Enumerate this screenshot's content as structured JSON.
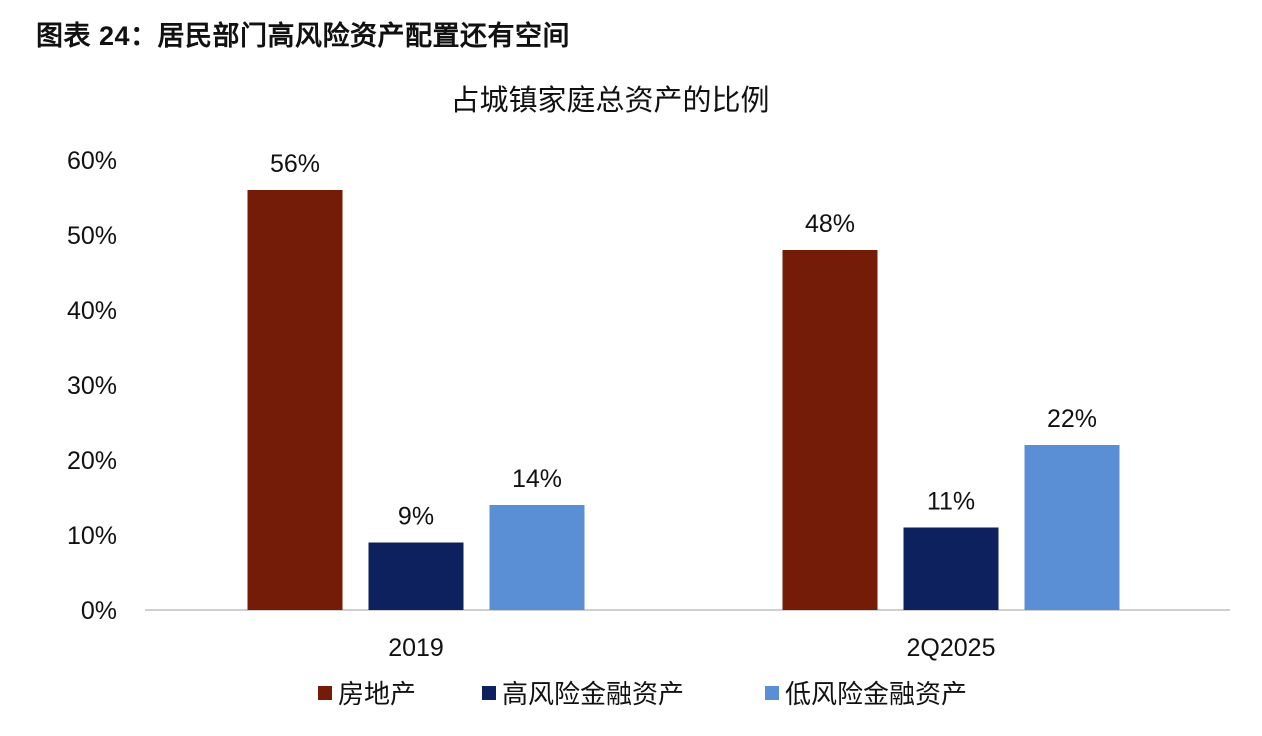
{
  "figure_title": "图表 24：居民部门高风险资产配置还有空间",
  "chart_data": {
    "type": "bar",
    "title": "占城镇家庭总资产的比例",
    "xlabel": "",
    "ylabel": "",
    "categories": [
      "2019",
      "2Q2025"
    ],
    "series": [
      {
        "name": "房地产",
        "values": [
          56,
          48
        ],
        "labels": [
          "56%",
          "48%"
        ],
        "color": "#741C07"
      },
      {
        "name": "高风险金融资产",
        "values": [
          9,
          11
        ],
        "labels": [
          "9%",
          "11%"
        ],
        "color": "#0C215E"
      },
      {
        "name": "低风险金融资产",
        "values": [
          14,
          22
        ],
        "labels": [
          "14%",
          "22%"
        ],
        "color": "#5A8FD5"
      }
    ],
    "ylim": [
      0,
      60
    ],
    "yticks": [
      "0%",
      "10%",
      "20%",
      "30%",
      "40%",
      "50%",
      "60%"
    ],
    "grid": false,
    "legend": "bottom"
  }
}
